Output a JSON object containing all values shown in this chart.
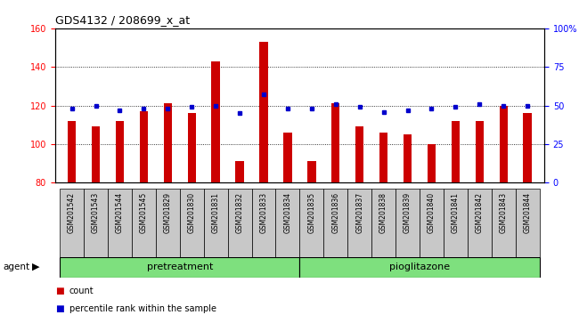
{
  "title": "GDS4132 / 208699_x_at",
  "samples": [
    "GSM201542",
    "GSM201543",
    "GSM201544",
    "GSM201545",
    "GSM201829",
    "GSM201830",
    "GSM201831",
    "GSM201832",
    "GSM201833",
    "GSM201834",
    "GSM201835",
    "GSM201836",
    "GSM201837",
    "GSM201838",
    "GSM201839",
    "GSM201840",
    "GSM201841",
    "GSM201842",
    "GSM201843",
    "GSM201844"
  ],
  "counts": [
    112,
    109,
    112,
    117,
    121,
    116,
    143,
    91,
    153,
    106,
    91,
    121,
    109,
    106,
    105,
    100,
    112,
    112,
    120,
    116
  ],
  "percentile": [
    48,
    50,
    47,
    48,
    48,
    49,
    50,
    45,
    57,
    48,
    48,
    51,
    49,
    46,
    47,
    48,
    49,
    51,
    50,
    50
  ],
  "pretreatment_indices": [
    0,
    1,
    2,
    3,
    4,
    5,
    6,
    7,
    8,
    9
  ],
  "pioglitazone_indices": [
    10,
    11,
    12,
    13,
    14,
    15,
    16,
    17,
    18,
    19
  ],
  "group_color": "#7EE07E",
  "bar_color": "#CC0000",
  "dot_color": "#0000CC",
  "bg_color": "#FFFFFF",
  "tick_bg_color": "#C8C8C8",
  "ylim_left": [
    80,
    160
  ],
  "ylim_right": [
    0,
    100
  ],
  "yticks_left": [
    80,
    100,
    120,
    140,
    160
  ],
  "yticks_right": [
    0,
    25,
    50,
    75,
    100
  ],
  "yticklabels_right": [
    "0",
    "25",
    "50",
    "75",
    "100%"
  ],
  "legend_count": "count",
  "legend_percentile": "percentile rank within the sample",
  "agent_label": "agent"
}
